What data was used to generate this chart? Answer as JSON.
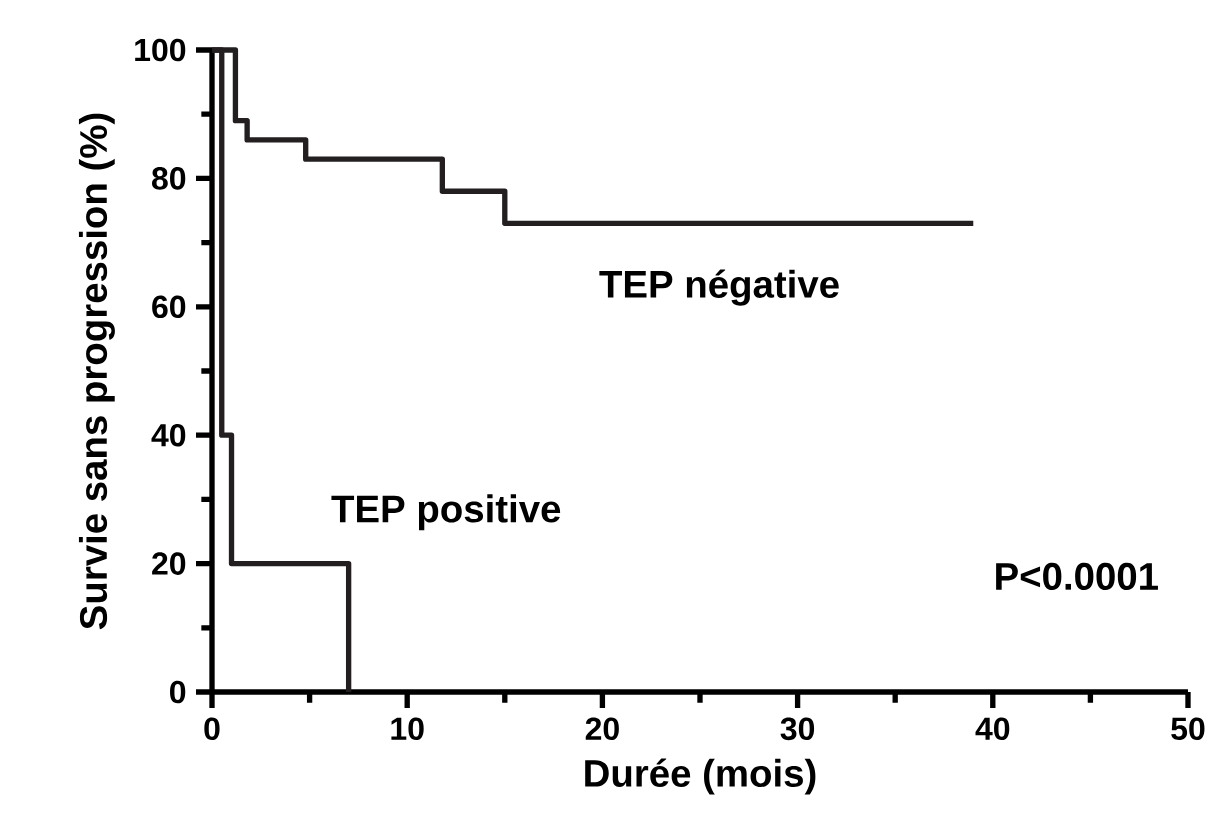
{
  "chart_data": {
    "type": "step",
    "xlabel": "Durée (mois)",
    "ylabel": "Survie sans progression (%)",
    "xlim": [
      0,
      50
    ],
    "xticks": [
      0,
      10,
      20,
      30,
      40,
      50
    ],
    "ylim": [
      0,
      100
    ],
    "yticks": [
      0,
      20,
      40,
      60,
      80,
      100
    ],
    "series": [
      {
        "color": "#231f20",
        "x": [
          0,
          1.2,
          1.8,
          4.8,
          11.8,
          15,
          39
        ],
        "values": [
          100,
          89,
          86,
          83,
          78,
          73,
          73
        ]
      },
      {
        "color": "#231f20",
        "x": [
          0,
          0.5,
          1,
          7
        ],
        "values": [
          100,
          40,
          20,
          0
        ]
      }
    ],
    "annotations": [
      "TEP négative",
      "TEP positive",
      "P<0.0001"
    ]
  }
}
